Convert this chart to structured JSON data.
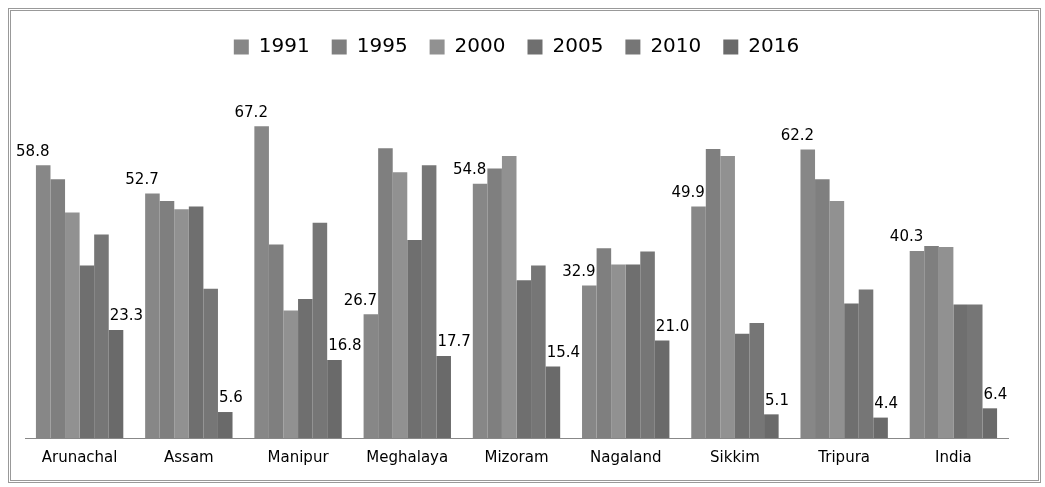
{
  "chart_data": {
    "type": "bar",
    "categories": [
      "Arunachal",
      "Assam",
      "Manipur",
      "Meghalaya",
      "Mizoram",
      "Nagaland",
      "Sikkim",
      "Tripura",
      "India"
    ],
    "series": [
      {
        "name": "1991",
        "color": "#878787",
        "values": [
          58.8,
          52.7,
          67.2,
          26.7,
          54.8,
          32.9,
          49.9,
          62.2,
          40.3
        ],
        "value_labels": [
          "58.8",
          "52.7",
          "67.2",
          "26.7",
          "54.8",
          "32.9",
          "49.9",
          "62.2",
          "40.3"
        ]
      },
      {
        "name": "1995",
        "color": "#7f7f7f",
        "values": [
          55.8,
          51.1,
          41.7,
          62.5,
          58.1,
          40.9,
          62.3,
          55.8,
          41.4
        ]
      },
      {
        "name": "2000",
        "color": "#919191",
        "values": [
          48.6,
          49.3,
          27.5,
          57.3,
          60.8,
          37.4,
          60.8,
          51.1,
          41.2
        ]
      },
      {
        "name": "2005",
        "color": "#6f6f6f",
        "values": [
          37.2,
          49.9,
          30.0,
          42.7,
          34.0,
          37.4,
          22.5,
          29.0,
          28.8
        ]
      },
      {
        "name": "2010",
        "color": "#767676",
        "values": [
          43.9,
          32.2,
          46.4,
          58.8,
          37.2,
          40.2,
          24.8,
          32.0,
          28.8
        ]
      },
      {
        "name": "2016",
        "color": "#6a6a6a",
        "values": [
          23.3,
          5.6,
          16.8,
          17.7,
          15.4,
          21.0,
          5.1,
          4.4,
          6.4
        ],
        "value_labels": [
          "23.3",
          "5.6",
          "16.8",
          "17.7",
          "15.4",
          "21.0",
          "5.1",
          "4.4",
          "6.4"
        ]
      }
    ],
    "legend": "top",
    "grid": false,
    "tick_labels": "x"
  }
}
